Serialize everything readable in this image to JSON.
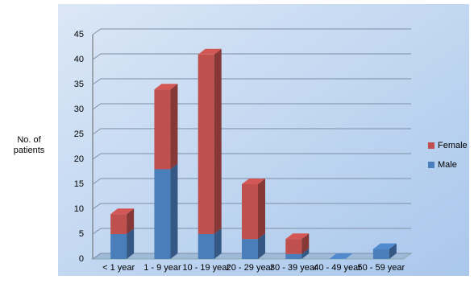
{
  "chart_data": {
    "type": "stacked_bar_3d",
    "y_label": "No. of patients",
    "categories": [
      "< 1 year",
      "1 - 9 year",
      "10 - 19 year",
      "20 - 29 year",
      "30 - 39 year",
      "40 - 49 year",
      "50 - 59 year"
    ],
    "series": [
      {
        "name": "Male",
        "color": "#4a7ebb",
        "values": [
          5,
          18,
          5,
          4,
          1,
          0,
          2
        ]
      },
      {
        "name": "Female",
        "color": "#c0504d",
        "values": [
          4,
          16,
          36,
          11,
          3,
          0,
          0
        ]
      }
    ],
    "ylim": [
      0,
      45
    ],
    "yticks": [
      0,
      5,
      10,
      15,
      20,
      25,
      30,
      35,
      40,
      45
    ],
    "grid": true,
    "legend": "right"
  }
}
